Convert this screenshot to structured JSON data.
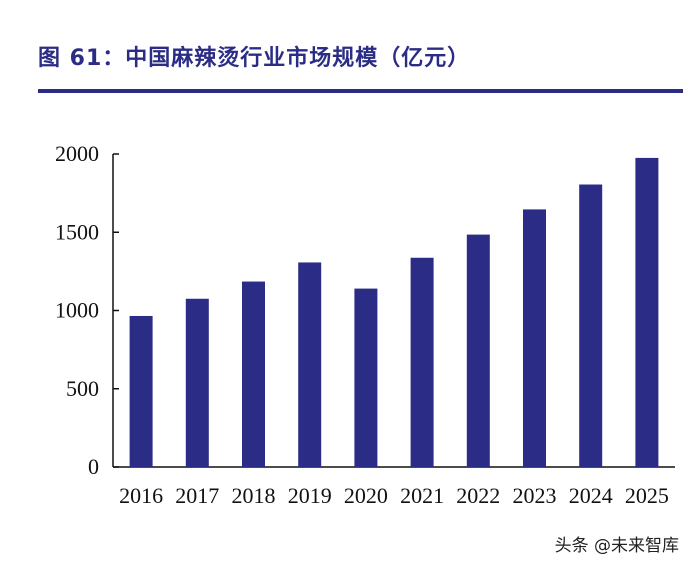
{
  "chart_data": {
    "type": "bar",
    "title": "图 61：中国麻辣烫行业市场规模（亿元）",
    "categories": [
      "2016",
      "2017",
      "2018",
      "2019",
      "2020",
      "2021",
      "2022",
      "2023",
      "2024",
      "2025"
    ],
    "values": [
      965,
      1075,
      1185,
      1307,
      1140,
      1337,
      1485,
      1646,
      1805,
      1975
    ],
    "ylim": [
      0,
      2000
    ],
    "yticks": [
      0,
      500,
      1000,
      1500,
      2000
    ],
    "xlabel": "",
    "ylabel": "",
    "bar_color": "#2B2C85",
    "grid": false,
    "legend": "none"
  },
  "watermark": "头条 @未来智库",
  "colors": {
    "accent": "#2B2C85",
    "text": "#111111"
  }
}
